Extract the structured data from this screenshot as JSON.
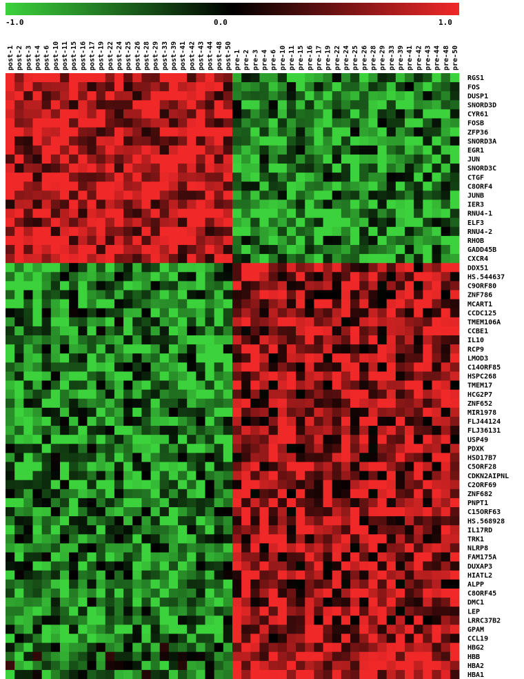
{
  "chart_data": {
    "type": "heatmap",
    "color_scale": {
      "min": -1.0,
      "mid": 0.0,
      "max": 1.0,
      "min_label": "-1.0",
      "mid_label": "0.0",
      "max_label": "1.0",
      "low_color": "#3cd23c",
      "mid_color": "#000000",
      "high_color": "#f02828"
    },
    "columns": [
      "post-1",
      "post-2",
      "post-3",
      "post-4",
      "post-6",
      "post-10",
      "post-11",
      "post-15",
      "post-16",
      "post-17",
      "post-19",
      "post-22",
      "post-24",
      "post-25",
      "post-26",
      "post-28",
      "post-29",
      "post-33",
      "post-39",
      "post-41",
      "post-42",
      "post-43",
      "post-44",
      "post-48",
      "post-50",
      "pre-1",
      "pre-2",
      "pre-3",
      "pre-4",
      "pre-6",
      "pre-10",
      "pre-11",
      "pre-15",
      "pre-16",
      "pre-17",
      "pre-19",
      "pre-22",
      "pre-24",
      "pre-25",
      "pre-26",
      "pre-28",
      "pre-29",
      "pre-33",
      "pre-39",
      "pre-41",
      "pre-42",
      "pre-43",
      "pre-44",
      "pre-48",
      "pre-50"
    ],
    "rows": [
      "RGS1",
      "FOS",
      "DUSP1",
      "SNORD3D",
      "CYR61",
      "FOSB",
      "ZFP36",
      "SNORD3A",
      "EGR1",
      "JUN",
      "SNORD3C",
      "CTGF",
      "C8ORF4",
      "JUNB",
      "IER3",
      "RNU4-1",
      "ELF3",
      "RNU4-2",
      "RHOB",
      "GADD45B",
      "CXCR4",
      "DDX51",
      "HS.544637",
      "C9ORF80",
      "ZNF786",
      "MCART1",
      "CCDC125",
      "TMEM106A",
      "CCBE1",
      "IL10",
      "RCP9",
      "LMOD3",
      "C14ORF85",
      "HSPC268",
      "TMEM17",
      "HCG2P7",
      "ZNF652",
      "MIR1978",
      "FLJ44124",
      "FLJ36131",
      "USP49",
      "PDXK",
      "HSD17B7",
      "C5ORF28",
      "CDKN2AIPNL",
      "C2ORF69",
      "ZNF682",
      "PNPT1",
      "C15ORF63",
      "HS.568928",
      "IL17RD",
      "TRK1",
      "NLRP8",
      "FAM175A",
      "DUXAP3",
      "HIATL2",
      "ALPP",
      "C8ORF45",
      "DMC1",
      "LEP",
      "LRRC37B2",
      "GPAM",
      "CCL19",
      "HBG2",
      "HBB",
      "HBA2",
      "HBA1"
    ],
    "row_groups": [
      {
        "rows_from": 0,
        "rows_to": 20,
        "post_mean": 0.8,
        "pre_mean": -0.65
      },
      {
        "rows_from": 21,
        "rows_to": 62,
        "post_mean": -0.6,
        "pre_mean": 0.6
      },
      {
        "rows_from": 63,
        "rows_to": 66,
        "post_mean": -0.4,
        "pre_mean": 0.85
      }
    ],
    "legend": "colorbar-top"
  }
}
